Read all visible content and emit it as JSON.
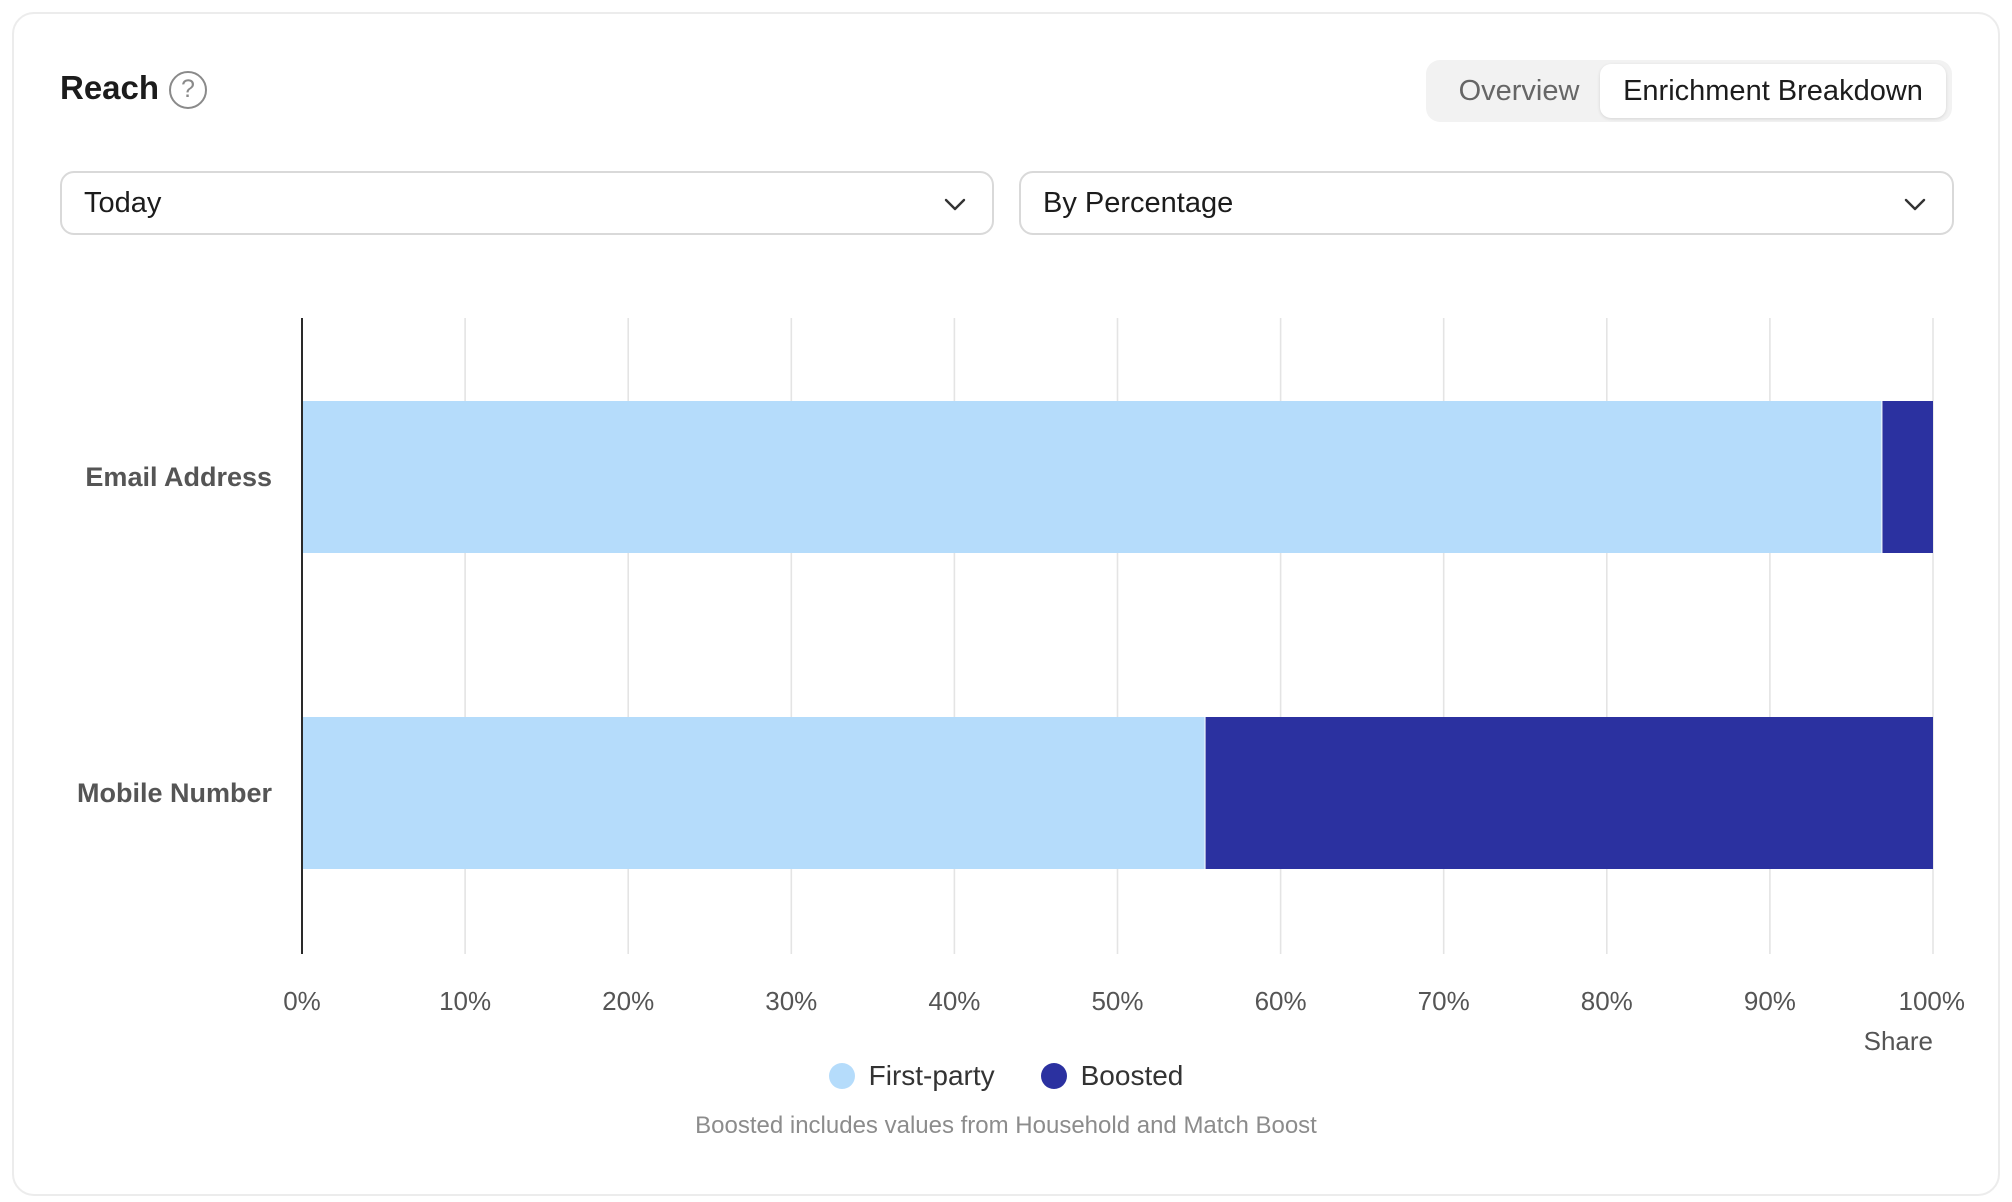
{
  "header": {
    "title": "Reach",
    "help_glyph": "?",
    "help_icon": "help-circle-icon"
  },
  "tabs": [
    {
      "label": "Overview",
      "active": false
    },
    {
      "label": "Enrichment Breakdown",
      "active": true
    }
  ],
  "filters": {
    "date_range": "Today",
    "display_mode": "By Percentage"
  },
  "colors": {
    "first_party": "#b5dcfb",
    "boosted": "#2b31a0",
    "grid": "#e4e4e4",
    "axis": "#2a2a2a"
  },
  "chart_data": {
    "type": "bar",
    "orientation": "horizontal",
    "stacked": true,
    "categories": [
      "Email Address",
      "Mobile Number"
    ],
    "series": [
      {
        "name": "First-party",
        "values": [
          96.9,
          55.4
        ]
      },
      {
        "name": "Boosted",
        "values": [
          3.1,
          44.6
        ]
      }
    ],
    "xlim": [
      0,
      100
    ],
    "xticks": [
      "0%",
      "10%",
      "20%",
      "30%",
      "40%",
      "50%",
      "60%",
      "70%",
      "80%",
      "90%",
      "100%"
    ],
    "xlabel": "Share",
    "grid": "vertical",
    "legend_position": "bottom-center"
  },
  "footnote": "Boosted includes values from Household and Match Boost"
}
